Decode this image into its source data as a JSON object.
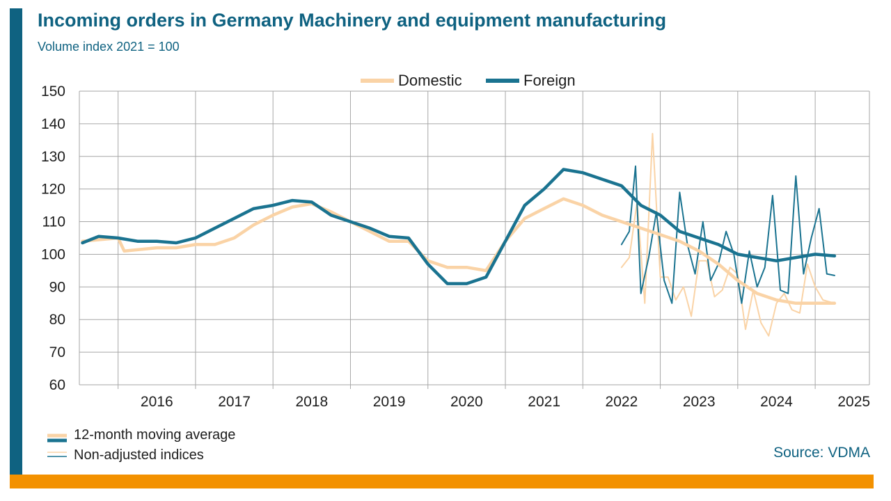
{
  "header": {
    "title": "Incoming orders in Germany Machinery and equipment manufacturing",
    "subtitle": "Volume index 2021 = 100"
  },
  "footer": {
    "source": "Source: VDMA",
    "note_moving_average": "12-month moving average",
    "note_non_adjusted": "Non-adjusted indices"
  },
  "colors": {
    "domestic": "#fad3a6",
    "foreign": "#1a7390",
    "brand_bar": "#0f6281",
    "accent_bar": "#f39100",
    "grid": "#a6a6a6"
  },
  "chart_data": {
    "type": "line",
    "title": "Incoming orders in Germany Machinery and equipment manufacturing",
    "subtitle": "Volume index 2021 = 100",
    "ylim": [
      60,
      150
    ],
    "yticks": [
      60,
      70,
      80,
      90,
      100,
      110,
      120,
      130,
      140,
      150
    ],
    "xlim": [
      2015.5,
      2025.7
    ],
    "xtick_labels": [
      "2016",
      "2017",
      "2018",
      "2019",
      "2020",
      "2021",
      "2022",
      "2023",
      "2024",
      "2025"
    ],
    "grid": true,
    "legend": {
      "placement": "top-center",
      "entries": [
        "Domestic",
        "Foreign"
      ]
    },
    "series": [
      {
        "name": "Domestic",
        "kind": "12-month moving average",
        "x": [
          2015.54,
          2016.0,
          2016.08,
          2016.5,
          2016.75,
          2017.0,
          2017.25,
          2017.5,
          2017.75,
          2018.0,
          2018.25,
          2018.5,
          2018.75,
          2019.0,
          2019.25,
          2019.5,
          2019.75,
          2020.0,
          2020.25,
          2020.5,
          2020.75,
          2021.0,
          2021.25,
          2021.5,
          2021.75,
          2022.0,
          2022.25,
          2022.5,
          2022.75,
          2023.0,
          2023.25,
          2023.5,
          2023.75,
          2024.0,
          2024.25,
          2024.5,
          2024.75,
          2025.0,
          2025.25
        ],
        "y": [
          104,
          105,
          101,
          102,
          102,
          103,
          103,
          105,
          109,
          112,
          114.5,
          115.5,
          113,
          110,
          107,
          104,
          104,
          98,
          96,
          96,
          95,
          104,
          111,
          114,
          117,
          115,
          112,
          110,
          108,
          106,
          104,
          101,
          97,
          92,
          88,
          86,
          85,
          85,
          85
        ]
      },
      {
        "name": "Foreign",
        "kind": "12-month moving average",
        "x": [
          2015.54,
          2015.75,
          2016.0,
          2016.25,
          2016.5,
          2016.75,
          2017.0,
          2017.25,
          2017.5,
          2017.75,
          2018.0,
          2018.25,
          2018.5,
          2018.75,
          2019.0,
          2019.25,
          2019.5,
          2019.75,
          2020.0,
          2020.25,
          2020.5,
          2020.75,
          2021.0,
          2021.25,
          2021.5,
          2021.75,
          2022.0,
          2022.25,
          2022.5,
          2022.75,
          2023.0,
          2023.25,
          2023.5,
          2023.75,
          2024.0,
          2024.25,
          2024.5,
          2024.75,
          2025.0,
          2025.25
        ],
        "y": [
          103.5,
          105.5,
          105,
          104,
          104,
          103.5,
          105,
          108,
          111,
          114,
          115,
          116.5,
          116,
          112,
          110,
          108,
          105.5,
          105,
          97,
          91,
          91,
          93,
          104,
          115,
          120,
          126,
          125,
          123,
          121,
          115,
          112,
          107,
          105,
          103,
          100,
          99,
          98,
          99,
          100,
          99.5
        ]
      },
      {
        "name": "Domestic",
        "kind": "Non-adjusted indices",
        "x": [
          2022.5,
          2022.6,
          2022.7,
          2022.8,
          2022.9,
          2023.0,
          2023.1,
          2023.2,
          2023.3,
          2023.4,
          2023.5,
          2023.6,
          2023.7,
          2023.8,
          2023.9,
          2024.0,
          2024.1,
          2024.2,
          2024.3,
          2024.4,
          2024.5,
          2024.6,
          2024.7,
          2024.8,
          2024.9,
          2025.0,
          2025.1,
          2025.25
        ],
        "y": [
          96,
          99,
          116,
          85,
          137,
          93,
          93,
          86,
          90,
          81,
          98,
          98,
          87,
          89,
          96,
          94,
          77,
          89,
          79,
          75,
          85,
          88,
          83,
          82,
          97,
          90,
          86,
          85
        ]
      },
      {
        "name": "Foreign",
        "kind": "Non-adjusted indices",
        "x": [
          2022.5,
          2022.6,
          2022.68,
          2022.75,
          2022.85,
          2022.95,
          2023.05,
          2023.15,
          2023.25,
          2023.35,
          2023.45,
          2023.55,
          2023.65,
          2023.75,
          2023.85,
          2023.95,
          2024.05,
          2024.15,
          2024.25,
          2024.35,
          2024.45,
          2024.55,
          2024.65,
          2024.75,
          2024.85,
          2024.95,
          2025.05,
          2025.15,
          2025.25
        ],
        "y": [
          103,
          107,
          127,
          88,
          99,
          113,
          92,
          85,
          119,
          103,
          94,
          110,
          92,
          97,
          107,
          100,
          85,
          101,
          90,
          96,
          118,
          89,
          88,
          124,
          94,
          105,
          114,
          94,
          93.5
        ]
      }
    ]
  }
}
